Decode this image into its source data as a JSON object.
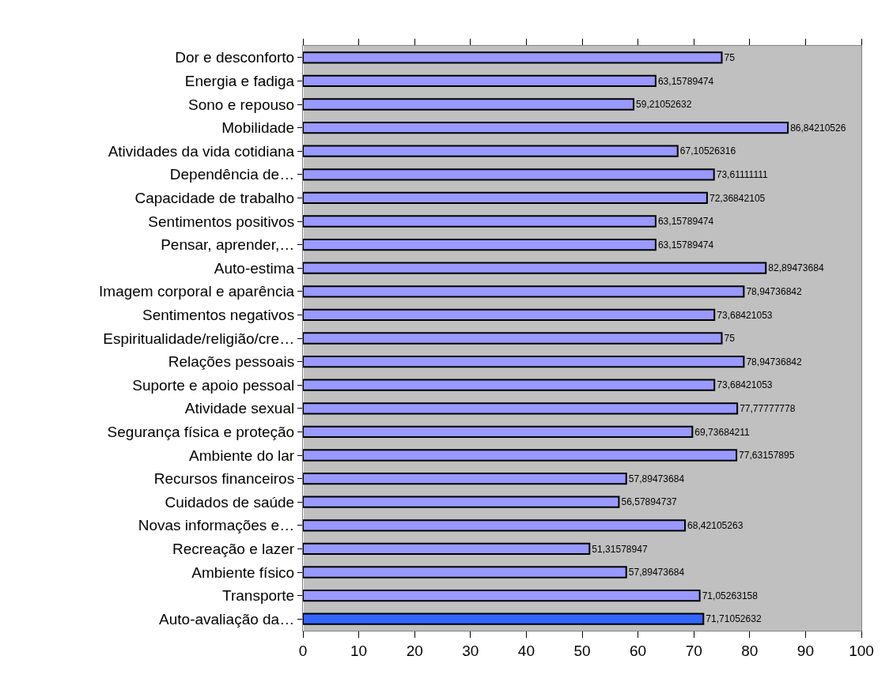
{
  "chart_data": {
    "type": "bar",
    "orientation": "horizontal",
    "categories": [
      "Dor e desconforto",
      "Energia e fadiga",
      "Sono e repouso",
      "Mobilidade",
      "Atividades da vida cotidiana",
      "Dependência de…",
      "Capacidade de trabalho",
      "Sentimentos positivos",
      "Pensar, aprender,…",
      "Auto-estima",
      "Imagem corporal e aparência",
      "Sentimentos negativos",
      "Espiritualidade/religião/cre…",
      "Relações pessoais",
      "Suporte e apoio pessoal",
      "Atividade sexual",
      "Segurança física e proteção",
      "Ambiente do lar",
      "Recursos financeiros",
      "Cuidados de saúde",
      "Novas informações e…",
      "Recreação e lazer",
      "Ambiente físico",
      "Transporte",
      "Auto-avaliação da…"
    ],
    "values": [
      75,
      63.15789474,
      59.21052632,
      86.84210526,
      67.10526316,
      73.61111111,
      72.36842105,
      63.15789474,
      63.15789474,
      82.89473684,
      78.94736842,
      73.68421053,
      75,
      78.94736842,
      73.68421053,
      77.77777778,
      69.73684211,
      77.63157895,
      57.89473684,
      56.57894737,
      68.42105263,
      51.31578947,
      57.89473684,
      71.05263158,
      71.71052632
    ],
    "value_labels": [
      "75",
      "63,15789474",
      "59,21052632",
      "86,84210526",
      "67,10526316",
      "73,61111111",
      "72,36842105",
      "63,15789474",
      "63,15789474",
      "82,89473684",
      "78,94736842",
      "73,68421053",
      "75",
      "78,94736842",
      "73,68421053",
      "77,77777778",
      "69,73684211",
      "77,63157895",
      "57,89473684",
      "56,57894737",
      "68,42105263",
      "51,31578947",
      "57,89473684",
      "71,05263158",
      "71,71052632"
    ],
    "colors": [
      "#9999ff",
      "#9999ff",
      "#9999ff",
      "#9999ff",
      "#9999ff",
      "#9999ff",
      "#9999ff",
      "#9999ff",
      "#9999ff",
      "#9999ff",
      "#9999ff",
      "#9999ff",
      "#9999ff",
      "#9999ff",
      "#9999ff",
      "#9999ff",
      "#9999ff",
      "#9999ff",
      "#9999ff",
      "#9999ff",
      "#9999ff",
      "#9999ff",
      "#9999ff",
      "#9999ff",
      "#3366ff"
    ],
    "xlim": [
      0,
      100
    ],
    "xticks": [
      0,
      10,
      20,
      30,
      40,
      50,
      60,
      70,
      80,
      90,
      100
    ],
    "grid": false,
    "legend": false
  }
}
